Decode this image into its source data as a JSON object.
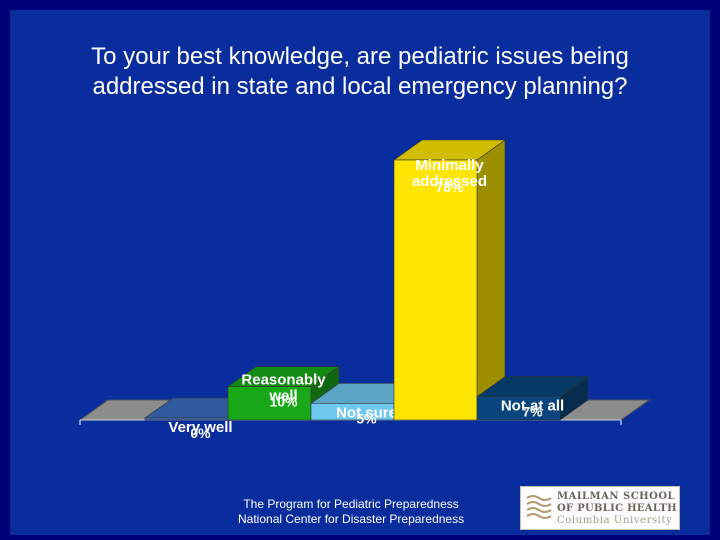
{
  "slide": {
    "title_line1": "To your best knowledge, are pediatric issues being",
    "title_line2": "addressed in state and local emergency planning?",
    "footer_line1": "The Program for Pediatric Preparedness",
    "footer_line2": "National Center for Disaster Preparedness",
    "logo": {
      "line1": "MAILMAN SCHOOL",
      "line2": "OF PUBLIC HEALTH",
      "line3": "Columbia University"
    }
  },
  "colors": {
    "background": "#0A2D9E",
    "border": "#000078"
  },
  "chart_data": {
    "type": "bar",
    "title": "To your best knowledge, are pediatric issues being addressed in state and local emergency planning?",
    "categories": [
      [
        "Very well"
      ],
      [
        "Reasonably",
        "well"
      ],
      [
        "Not sure"
      ],
      [
        "Minimally",
        "addressed"
      ],
      [
        "Not at all"
      ]
    ],
    "values": [
      0,
      10,
      5,
      78,
      7
    ],
    "value_labels": [
      "0%",
      "10%",
      "5%",
      "78%",
      "7%"
    ],
    "colors": [
      "#3D6FC2",
      "#18A818",
      "#6EC8F0",
      "#FFE600",
      "#08457E"
    ],
    "ylim": [
      0,
      78
    ],
    "grid": false,
    "legend": "none"
  }
}
